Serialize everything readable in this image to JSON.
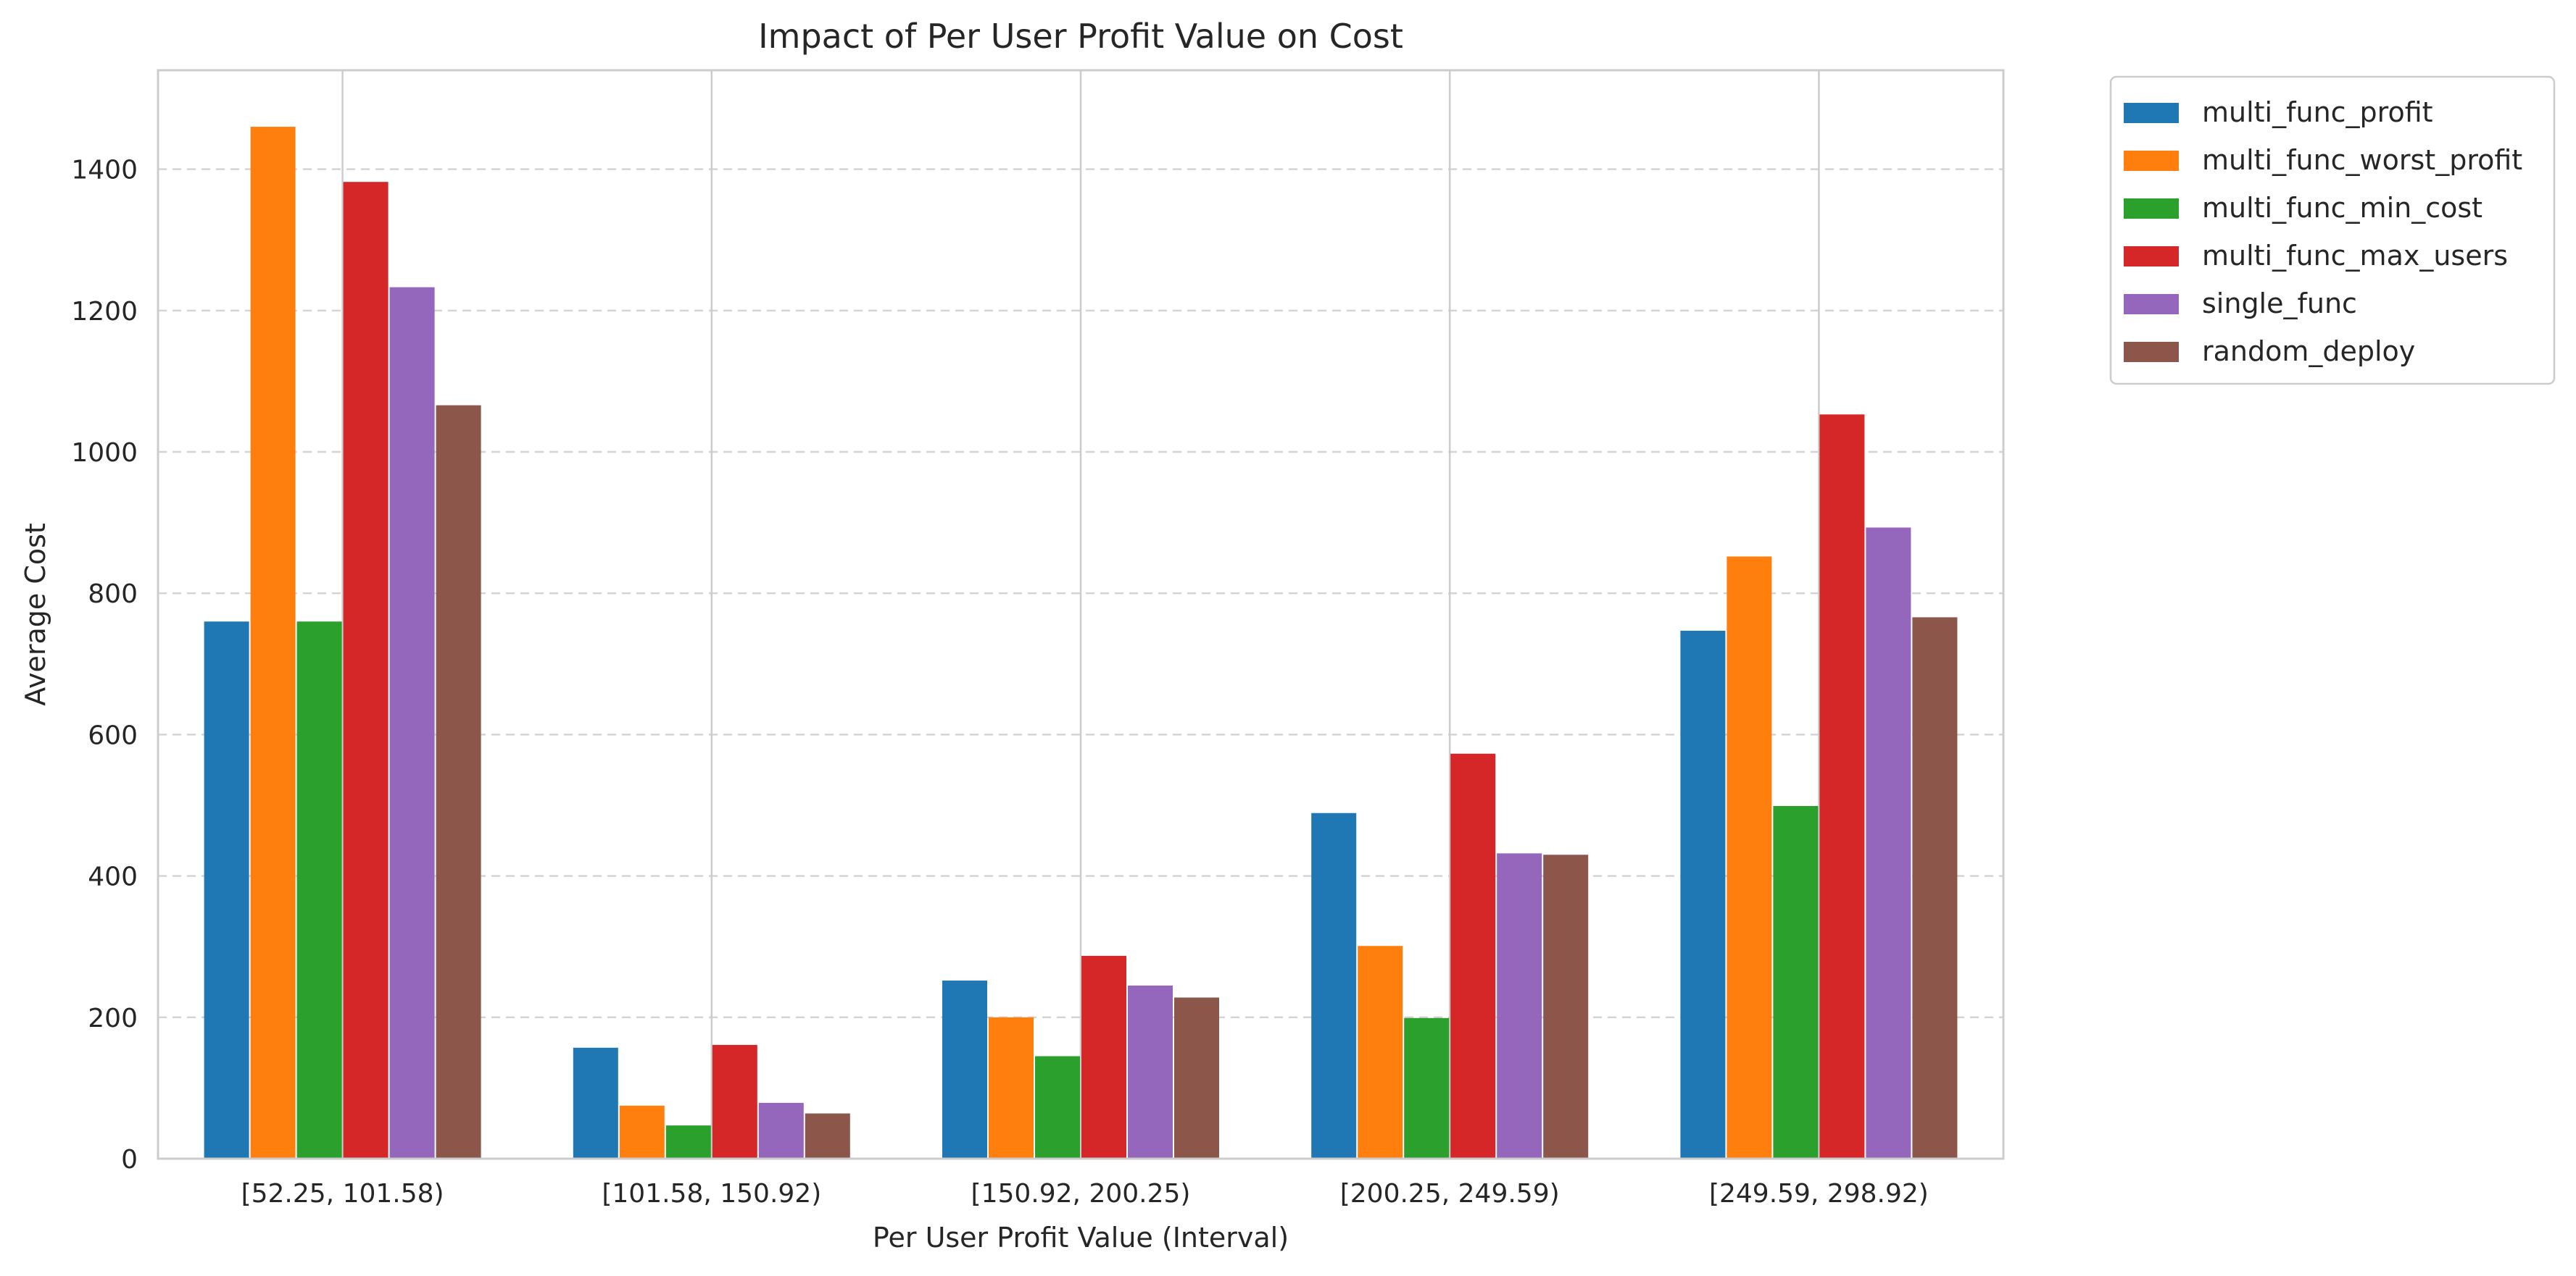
{
  "chart_data": {
    "type": "bar",
    "title": "Impact of Per User Profit Value on Cost",
    "xlabel": "Per User Profit Value (Interval)",
    "ylabel": "Average Cost",
    "ylim": [
      0,
      1540
    ],
    "yticks": [
      0,
      200,
      400,
      600,
      800,
      1000,
      1200,
      1400
    ],
    "categories": [
      "[52.25, 101.58)",
      "[101.58, 150.92)",
      "[150.92, 200.25)",
      "[200.25, 249.59)",
      "[249.59, 298.92)"
    ],
    "grid": "y-dashed",
    "legend_position": "outside-top-right",
    "series": [
      {
        "name": "multi_func_profit",
        "color": "#1f77b4",
        "values": [
          760,
          157,
          252,
          489,
          747
        ]
      },
      {
        "name": "multi_func_worst_profit",
        "color": "#ff7f0e",
        "values": [
          1460,
          75,
          200,
          301,
          852
        ]
      },
      {
        "name": "multi_func_min_cost",
        "color": "#2ca02c",
        "values": [
          760,
          47,
          145,
          199,
          499
        ]
      },
      {
        "name": "multi_func_max_users",
        "color": "#d62728",
        "values": [
          1382,
          161,
          287,
          573,
          1053
        ]
      },
      {
        "name": "single_func",
        "color": "#9467bd",
        "values": [
          1233,
          79,
          245,
          432,
          893
        ]
      },
      {
        "name": "random_deploy",
        "color": "#8c564b",
        "values": [
          1066,
          64,
          228,
          430,
          766
        ]
      }
    ]
  }
}
